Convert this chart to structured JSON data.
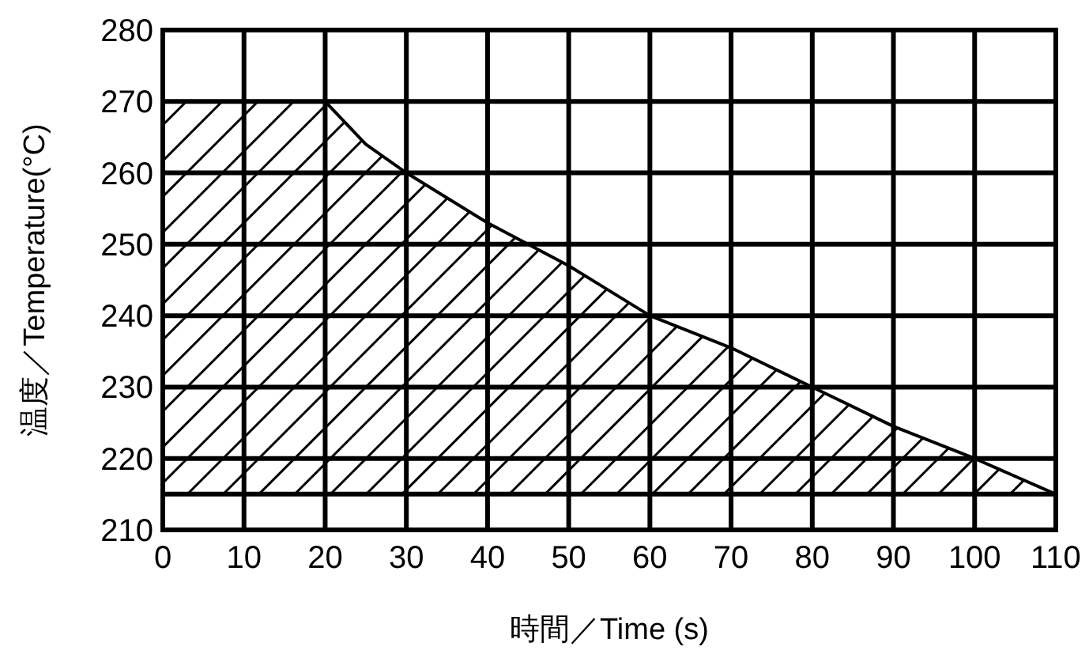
{
  "chart_data": {
    "type": "area",
    "xlabel": "時間／Time (s)",
    "ylabel": "温度／Temperature(°C)",
    "x": [
      0,
      20,
      25,
      30,
      40,
      50,
      60,
      70,
      80,
      90,
      100,
      110
    ],
    "series": [
      {
        "color": "#000000",
        "values": [
          270,
          270,
          264,
          260,
          253,
          247,
          240,
          235.5,
          230,
          224.5,
          220,
          215
        ]
      }
    ],
    "xlim": [
      0,
      110
    ],
    "xticks": [
      0,
      10,
      20,
      30,
      40,
      50,
      60,
      70,
      80,
      90,
      100,
      110
    ],
    "ylim": [
      210,
      280
    ],
    "yticks": [
      210,
      220,
      230,
      240,
      250,
      260,
      270,
      280
    ],
    "ref_lines": [
      {
        "axis": "y",
        "value": 215,
        "color": "#000000"
      }
    ],
    "grid": true
  }
}
